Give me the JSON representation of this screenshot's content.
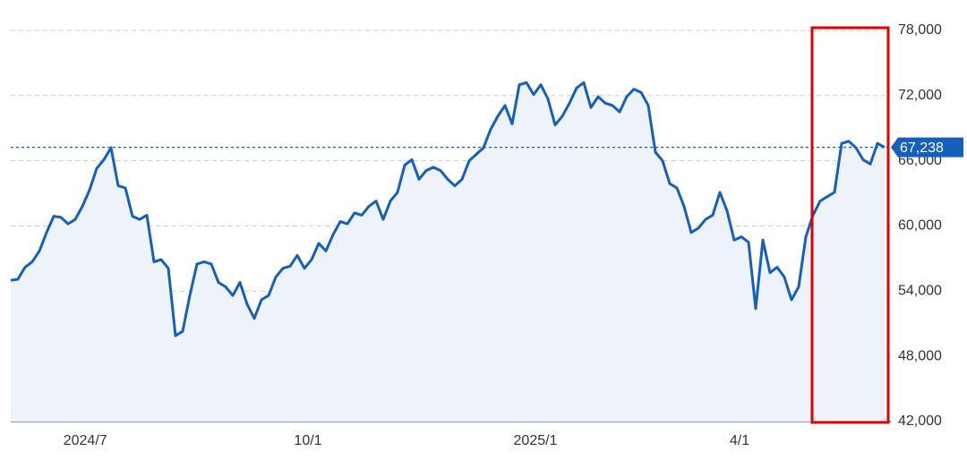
{
  "chart_data": {
    "type": "line",
    "x": [
      0,
      1,
      2,
      3,
      4,
      5,
      6,
      7,
      8,
      9,
      10,
      11,
      12,
      13,
      14,
      15,
      16,
      17,
      18,
      19,
      20,
      21,
      22,
      23,
      24,
      25,
      26,
      27,
      28,
      29,
      30,
      31,
      32,
      33,
      34,
      35,
      36,
      37,
      38,
      39,
      40,
      41,
      42,
      43,
      44,
      45,
      46,
      47,
      48,
      49,
      50,
      51,
      52,
      53,
      54,
      55,
      56,
      57,
      58,
      59,
      60,
      61,
      62,
      63,
      64,
      65,
      66,
      67,
      68,
      69,
      70,
      71,
      72,
      73,
      74,
      75,
      76,
      77,
      78,
      79,
      80,
      81,
      82,
      83,
      84,
      85,
      86,
      87,
      88,
      89,
      90,
      91,
      92,
      93,
      94,
      95,
      96,
      97,
      98,
      99,
      100,
      101,
      102,
      103,
      104,
      105,
      106,
      107,
      108,
      109,
      110,
      111,
      112,
      113,
      114,
      115,
      116,
      117,
      118,
      119,
      120,
      121,
      122
    ],
    "series": [
      {
        "color": "#1560bd",
        "fill": "#eef2fb",
        "values": [
          55000,
          55100,
          56200,
          56700,
          57700,
          59400,
          60900,
          60800,
          60200,
          60600,
          61800,
          63300,
          65300,
          66100,
          67200,
          63700,
          63500,
          60900,
          60600,
          61000,
          56700,
          56900,
          56100,
          49900,
          50300,
          53600,
          56500,
          56700,
          56500,
          54800,
          54400,
          53600,
          54800,
          52800,
          51500,
          53200,
          53600,
          55300,
          56100,
          56300,
          57300,
          56100,
          56900,
          58400,
          57700,
          59200,
          60400,
          60200,
          61200,
          61000,
          61800,
          62300,
          60600,
          62300,
          63100,
          65600,
          66100,
          64300,
          65100,
          65400,
          65100,
          64300,
          63700,
          64300,
          66000,
          66600,
          67200,
          68900,
          70100,
          71100,
          69400,
          73000,
          73200,
          72100,
          73000,
          71700,
          69300,
          70100,
          71300,
          72700,
          73200,
          70900,
          71900,
          71300,
          71100,
          70500,
          71900,
          72600,
          72300,
          71100,
          66800,
          66000,
          63900,
          63500,
          61800,
          59400,
          59800,
          60600,
          61000,
          63100,
          61400,
          58700,
          59000,
          58500,
          52400,
          58700,
          55700,
          56200,
          55300,
          53200,
          54400,
          59000,
          61000,
          62300,
          62700,
          63100,
          67600,
          67800,
          67200,
          66100,
          65700,
          67600,
          67238
        ]
      }
    ],
    "current_price": {
      "value": 67238,
      "label": "67,238",
      "color": "#1560bd"
    },
    "xlim": [
      0,
      122
    ],
    "xticks": [
      {
        "value": 10.4,
        "label": "2024/7"
      },
      {
        "value": 41.5,
        "label": "10/1"
      },
      {
        "value": 73.25,
        "label": "2025/1"
      },
      {
        "value": 101.75,
        "label": "4/1"
      }
    ],
    "ylim": [
      42000,
      78000
    ],
    "yticks": [
      {
        "value": 42000,
        "label": "42,000"
      },
      {
        "value": 48000,
        "label": "48,000"
      },
      {
        "value": 54000,
        "label": "54,000"
      },
      {
        "value": 60000,
        "label": "60,000"
      },
      {
        "value": 66000,
        "label": "66,000"
      },
      {
        "value": 72000,
        "label": "72,000"
      },
      {
        "value": 78000,
        "label": "78,000"
      }
    ],
    "grid": true
  }
}
